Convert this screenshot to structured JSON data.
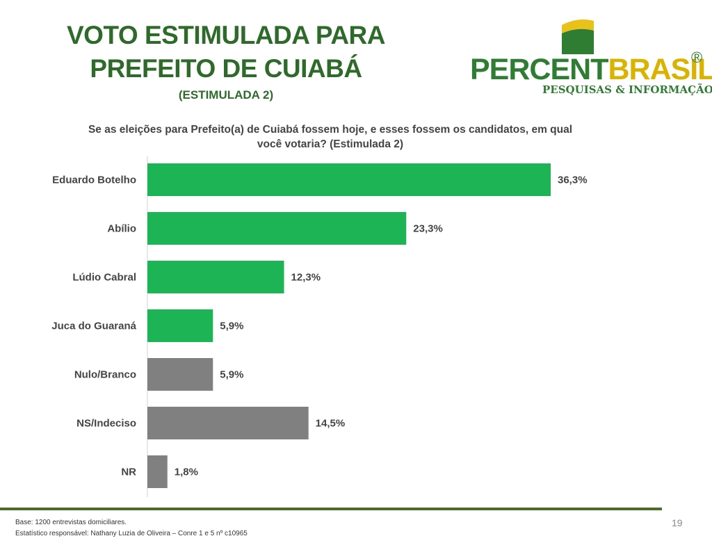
{
  "header": {
    "title_line1": "VOTO ESTIMULADA PARA",
    "title_line2": "PREFEITO DE  CUIABÁ",
    "subtitle": "(ESTIMULADA 2)"
  },
  "logo": {
    "word_part1": "PERCENT",
    "word_part2": "BRASIL",
    "registered": "®",
    "tagline": "PESQUISAS & INFORMAÇÃO",
    "colors": {
      "green": "#2e7d32",
      "yellow": "#d9b300"
    }
  },
  "question": {
    "line1": "Se as eleições para Prefeito(a) de Cuiabá fossem hoje, e esses fossem os candidatos, em qual",
    "line2": "você votaria? (Estimulada 2)"
  },
  "chart_data": {
    "type": "bar",
    "orientation": "horizontal",
    "categories": [
      "Eduardo Botelho",
      "Abílio",
      "Lúdio Cabral",
      "Juca do Guaraná",
      "Nulo/Branco",
      "NS/Indeciso",
      "NR"
    ],
    "values": [
      36.3,
      23.3,
      12.3,
      5.9,
      5.9,
      14.5,
      1.8
    ],
    "value_labels": [
      "36,3%",
      "23,3%",
      "12,3%",
      "5,9%",
      "5,9%",
      "14,5%",
      "1,8%"
    ],
    "bar_colors": [
      "#1cb455",
      "#1cb455",
      "#1cb455",
      "#1cb455",
      "#808080",
      "#808080",
      "#808080"
    ],
    "unit": "%",
    "xlim": [
      0,
      40
    ],
    "grid": false
  },
  "footer": {
    "base": "Base: 1200 entrevistas domiciliares.",
    "statistician": "Estatístico responsável: Nathany Luzia de Oliveira – Conre 1 e 5 nº c10965",
    "page_number": "19"
  }
}
